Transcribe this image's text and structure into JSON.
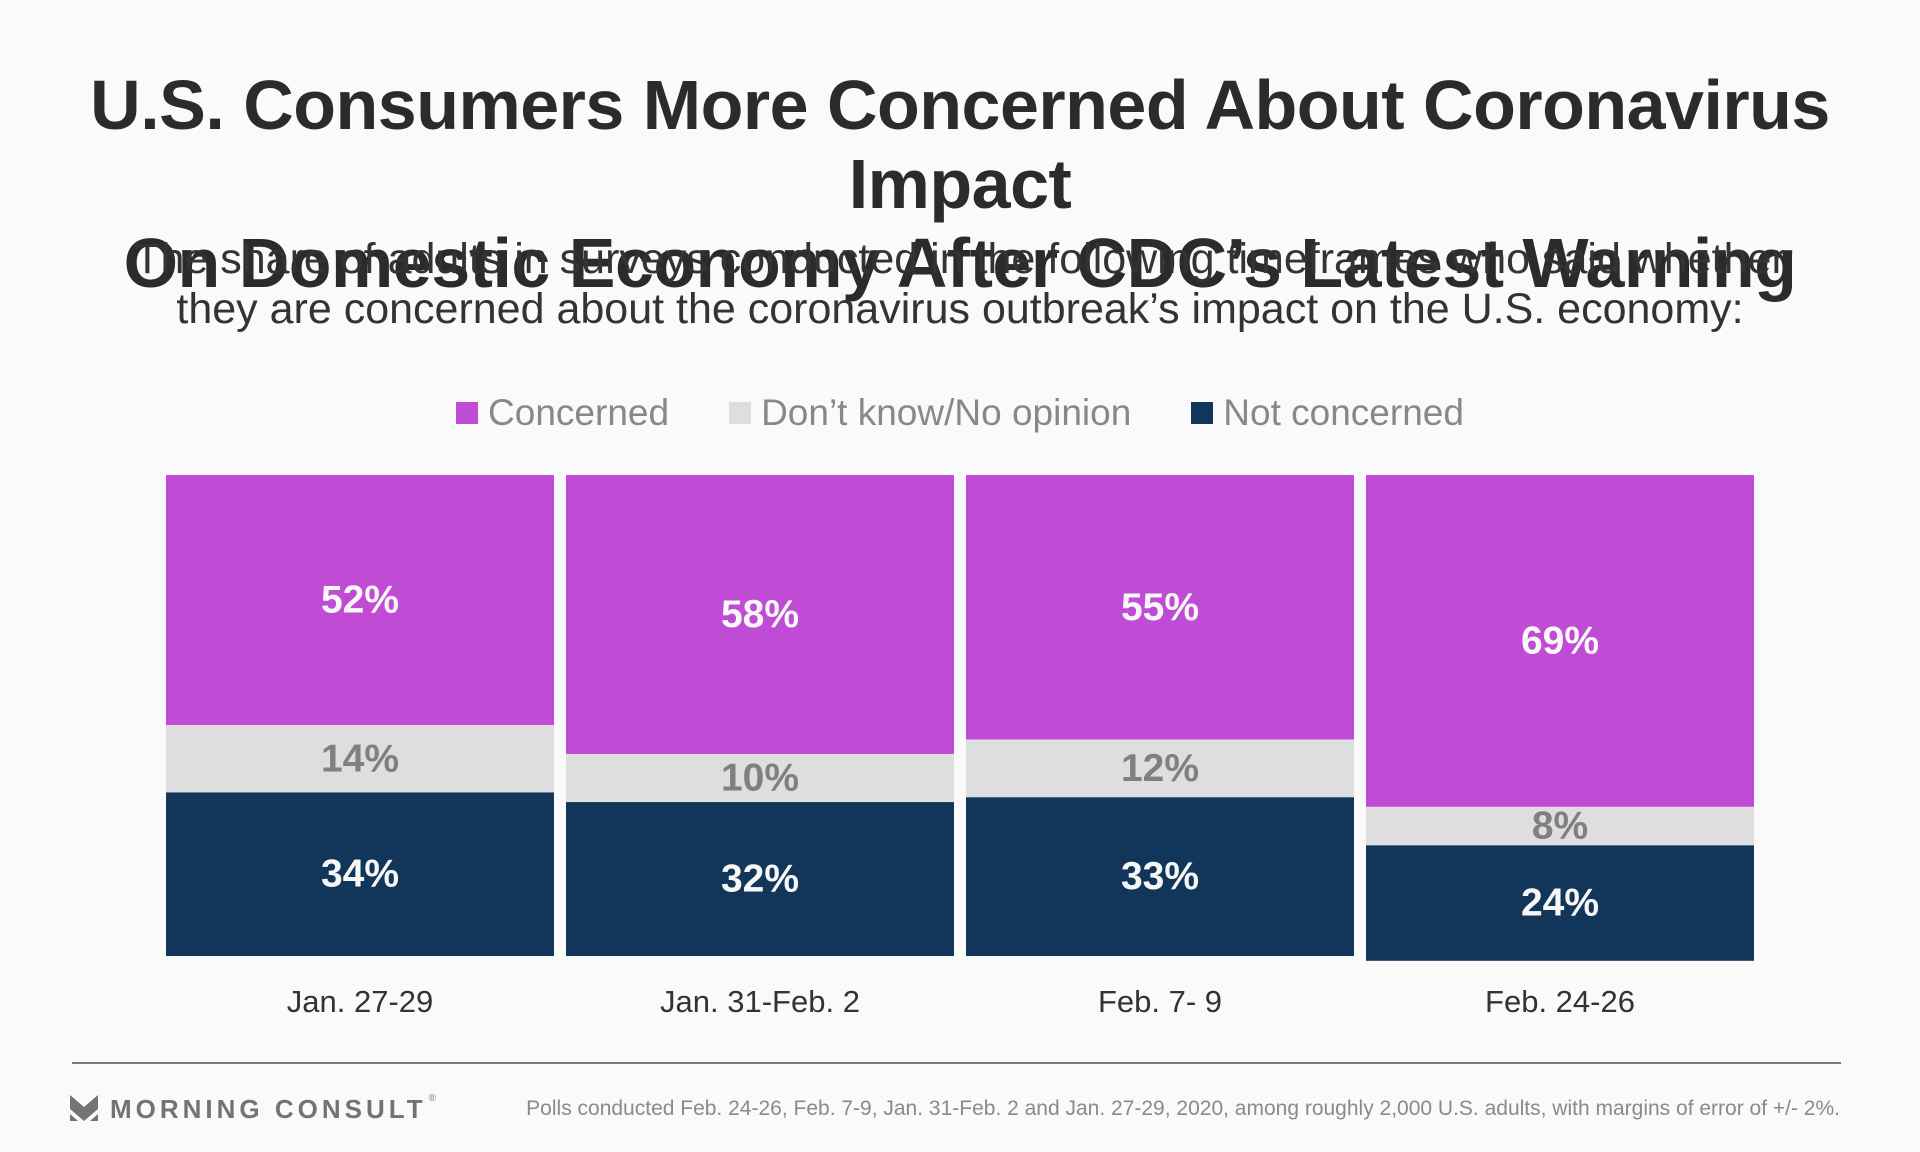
{
  "header": {
    "title_line1": "U.S. Consumers More Concerned About Coronavirus Impact",
    "title_line2": "On Domestic Economy After CDC’s Latest Warning",
    "subtitle_line1": "The share of adults in surveys conducted in the following timeframes who said whether",
    "subtitle_line2": "they are concerned about the coronavirus outbreak’s impact on the U.S. economy:"
  },
  "colors": {
    "concerned": "#C04CD6",
    "dont_know": "#DEDEDE",
    "not_concerned": "#12355A",
    "label_light": "#F7F7F7",
    "label_gray": "#808080"
  },
  "chart_data": {
    "type": "bar",
    "stacked": true,
    "normalized": true,
    "title": "U.S. Consumers More Concerned About Coronavirus Impact On Domestic Economy After CDC’s Latest Warning",
    "xlabel": "",
    "ylabel": "",
    "ylim": [
      0,
      100
    ],
    "grid": false,
    "legend_position": "top-center",
    "categories": [
      "Jan. 27-29",
      "Jan. 31-Feb. 2",
      "Feb. 7- 9",
      "Feb. 24-26"
    ],
    "series": [
      {
        "name": "Concerned",
        "key": "concerned",
        "values": [
          52,
          58,
          55,
          69
        ]
      },
      {
        "name": "Don’t know/No opinion",
        "key": "dont_know",
        "values": [
          14,
          10,
          12,
          8
        ]
      },
      {
        "name": "Not concerned",
        "key": "not_concerned",
        "values": [
          34,
          32,
          33,
          24
        ]
      }
    ],
    "value_format": "{v}%"
  },
  "legend": [
    {
      "label": "Concerned",
      "key": "concerned"
    },
    {
      "label": "Don’t know/No opinion",
      "key": "dont_know"
    },
    {
      "label": "Not concerned",
      "key": "not_concerned"
    }
  ],
  "footer": {
    "brand": "MORNING CONSULT",
    "brand_mark": "®",
    "note": "Polls conducted Feb. 24-26, Feb. 7-9, Jan. 31-Feb. 2 and Jan. 27-29, 2020, among roughly 2,000 U.S. adults, with margins of error of +/- 2%."
  }
}
